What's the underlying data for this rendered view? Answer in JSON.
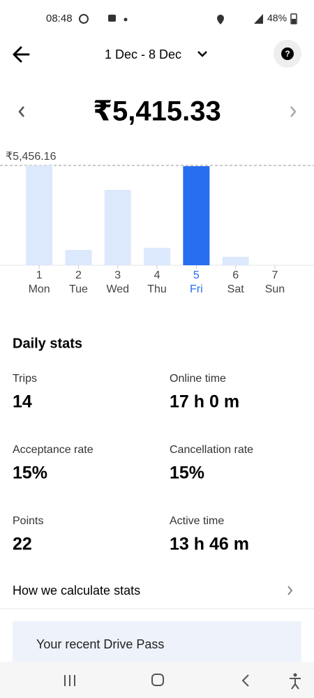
{
  "status_bar": {
    "time": "08:48",
    "battery": "48%"
  },
  "header": {
    "date_range": "1 Dec - 8 Dec"
  },
  "summary": {
    "amount": "₹5,415.33"
  },
  "chart_data": {
    "type": "bar",
    "categories": [
      "1",
      "2",
      "3",
      "4",
      "5",
      "6",
      "7"
    ],
    "weekdays": [
      "Mon",
      "Tue",
      "Wed",
      "Thu",
      "Fri",
      "Sat",
      "Sun"
    ],
    "values": [
      5456.16,
      840,
      4120,
      950,
      5415.33,
      460,
      0
    ],
    "reference_line": {
      "value": 5456.16,
      "label": "₹5,456.16"
    },
    "selected": 4,
    "color": "#dce8fb",
    "selected_color": "#276ef1"
  },
  "stats": {
    "title": "Daily stats",
    "items": [
      {
        "label": "Trips",
        "value": "14"
      },
      {
        "label": "Online time",
        "value": "17 h 0 m"
      },
      {
        "label": "Acceptance rate",
        "value": "15%"
      },
      {
        "label": "Cancellation rate",
        "value": "15%"
      },
      {
        "label": "Points",
        "value": "22"
      },
      {
        "label": "Active time",
        "value": "13 h 46 m"
      }
    ],
    "link": "How we calculate stats"
  },
  "card": {
    "title": "Your recent Drive Pass"
  }
}
